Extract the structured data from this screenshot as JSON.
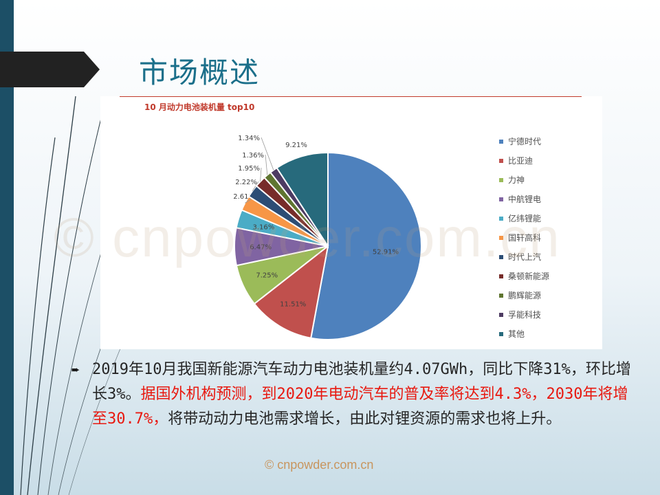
{
  "slide": {
    "title": "市场概述",
    "watermark": "© cnpowder.com.cn",
    "footer_watermark": "© cnpowder.com.cn",
    "bullet_icon": "right-arrow-icon",
    "body_normal_1": "2019年10月我国新能源汽车动力电池装机量约4.07GWh，同比下降31%，环比增长3%。",
    "body_red": "据国外机构预测，到2020年电动汽车的普及率将达到4.3%，2030年将增至30.7%，",
    "body_normal_2": "将带动动力电池需求增长，由此对锂资源的需求也将上升。",
    "accent_colors": {
      "title": "#1b6f8a",
      "highlight": "#e8180f",
      "side_bar": "#1c4f66"
    }
  },
  "chart_data": {
    "type": "pie",
    "title": "10 月动力电池装机量 top10",
    "legend_position": "right",
    "categories": [
      "宁德时代",
      "比亚迪",
      "力神",
      "中航锂电",
      "亿纬锂能",
      "国轩高科",
      "时代上汽",
      "桑顿新能源",
      "鹏辉能源",
      "孚能科技",
      "其他"
    ],
    "values": [
      52.91,
      11.51,
      7.25,
      6.47,
      3.16,
      2.61,
      2.22,
      1.95,
      1.36,
      1.34,
      9.21
    ],
    "labels": [
      "52.91%",
      "11.51%",
      "7.25%",
      "6.47%",
      "3.16%",
      "2.61%",
      "2.22%",
      "1.95%",
      "1.36%",
      "1.34%",
      "9.21%"
    ],
    "colors": [
      "#4e81bd",
      "#c0504d",
      "#9bbb59",
      "#8064a2",
      "#4bacc6",
      "#f79646",
      "#2c4d75",
      "#772c2a",
      "#5f7530",
      "#4d3b62",
      "#276a7c"
    ]
  }
}
